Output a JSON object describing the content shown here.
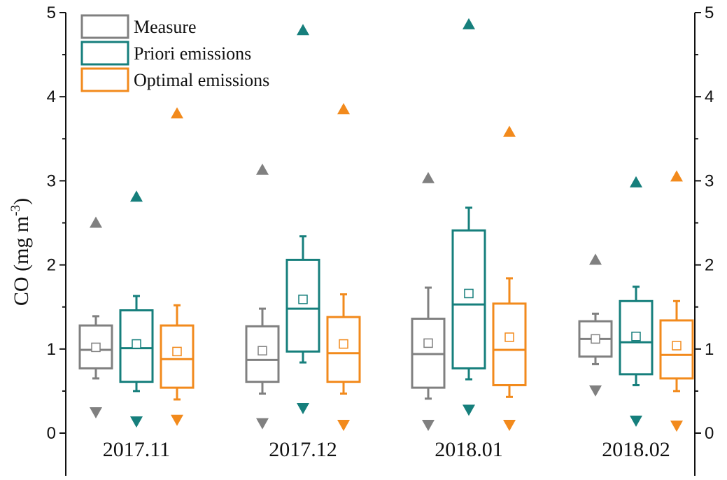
{
  "chart_data": {
    "type": "box",
    "ylabel": "CO (mg m",
    "ylabel_sup": "-3",
    "ylabel_end": ")",
    "ylim": [
      0,
      5
    ],
    "yticks": [
      "0",
      "1",
      "2",
      "3",
      "4",
      "5"
    ],
    "categories": [
      "2017.11",
      "2017.12",
      "2018.01",
      "2018.02"
    ],
    "legend_position": "top-left",
    "series": [
      {
        "name": "Measure",
        "color": "#808080",
        "boxes": [
          {
            "whisker_low": 0.65,
            "q1": 0.77,
            "median": 0.99,
            "q3": 1.28,
            "whisker_high": 1.39,
            "mean": 1.02,
            "max": 2.5,
            "min": 0.25
          },
          {
            "whisker_low": 0.47,
            "q1": 0.61,
            "median": 0.87,
            "q3": 1.27,
            "whisker_high": 1.48,
            "mean": 0.98,
            "max": 3.13,
            "min": 0.12
          },
          {
            "whisker_low": 0.41,
            "q1": 0.54,
            "median": 0.94,
            "q3": 1.36,
            "whisker_high": 1.73,
            "mean": 1.07,
            "max": 3.03,
            "min": 0.1
          },
          {
            "whisker_low": 0.82,
            "q1": 0.91,
            "median": 1.12,
            "q3": 1.33,
            "whisker_high": 1.42,
            "mean": 1.12,
            "max": 2.06,
            "min": 0.51
          }
        ]
      },
      {
        "name": "Priori emissions",
        "color": "#167F7C",
        "boxes": [
          {
            "whisker_low": 0.5,
            "q1": 0.61,
            "median": 1.01,
            "q3": 1.46,
            "whisker_high": 1.63,
            "mean": 1.06,
            "max": 2.81,
            "min": 0.14
          },
          {
            "whisker_low": 0.84,
            "q1": 0.97,
            "median": 1.48,
            "q3": 2.06,
            "whisker_high": 2.34,
            "mean": 1.59,
            "max": 4.79,
            "min": 0.3
          },
          {
            "whisker_low": 0.64,
            "q1": 0.77,
            "median": 1.53,
            "q3": 2.41,
            "whisker_high": 2.68,
            "mean": 1.66,
            "max": 4.86,
            "min": 0.28
          },
          {
            "whisker_low": 0.57,
            "q1": 0.7,
            "median": 1.08,
            "q3": 1.57,
            "whisker_high": 1.74,
            "mean": 1.15,
            "max": 2.98,
            "min": 0.15
          }
        ]
      },
      {
        "name": "Optimal emissions",
        "color": "#F28A1C",
        "boxes": [
          {
            "whisker_low": 0.4,
            "q1": 0.54,
            "median": 0.88,
            "q3": 1.28,
            "whisker_high": 1.52,
            "mean": 0.97,
            "max": 3.8,
            "min": 0.16
          },
          {
            "whisker_low": 0.47,
            "q1": 0.61,
            "median": 0.95,
            "q3": 1.38,
            "whisker_high": 1.65,
            "mean": 1.06,
            "max": 3.85,
            "min": 0.1
          },
          {
            "whisker_low": 0.43,
            "q1": 0.57,
            "median": 0.99,
            "q3": 1.54,
            "whisker_high": 1.84,
            "mean": 1.14,
            "max": 3.58,
            "min": 0.1
          },
          {
            "whisker_low": 0.5,
            "q1": 0.65,
            "median": 0.93,
            "q3": 1.34,
            "whisker_high": 1.57,
            "mean": 1.04,
            "max": 3.05,
            "min": 0.09
          }
        ]
      }
    ]
  }
}
